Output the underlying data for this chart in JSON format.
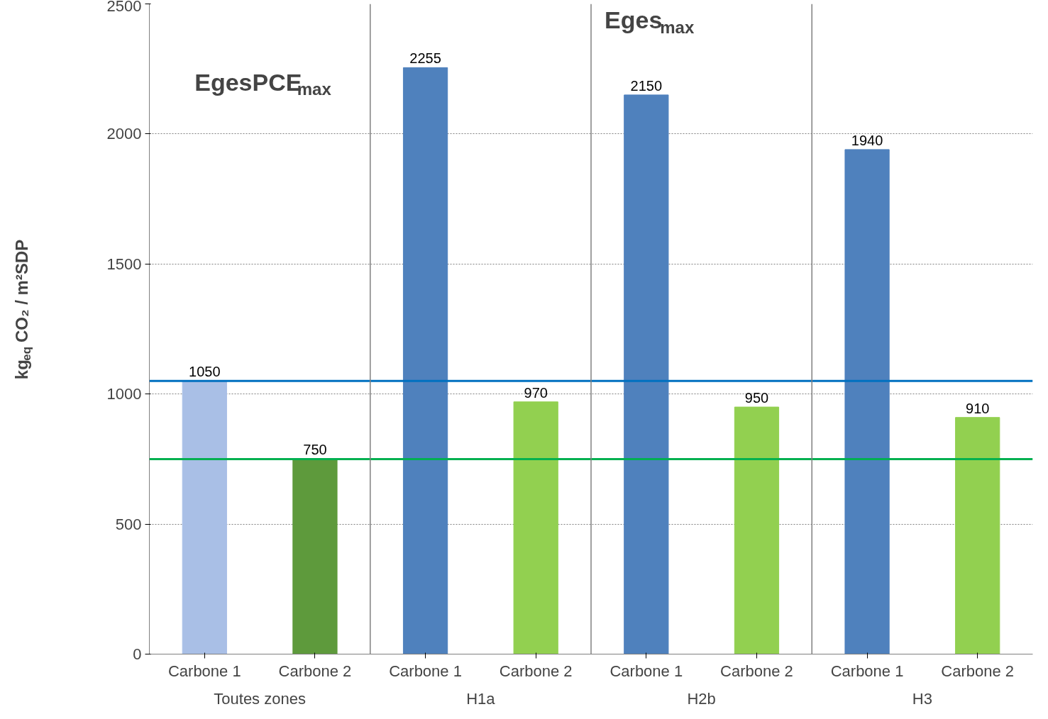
{
  "chart_data": {
    "type": "bar",
    "categories": [
      "Carbone 1",
      "Carbone 2",
      "Carbone 1",
      "Carbone 2",
      "Carbone 1",
      "Carbone 2",
      "Carbone 1",
      "Carbone 2"
    ],
    "values": [
      1050,
      750,
      2255,
      970,
      2150,
      950,
      1940,
      910
    ],
    "colors": [
      "#a9bfe6",
      "#5e9a3c",
      "#4f81bd",
      "#92d050",
      "#4f81bd",
      "#92d050",
      "#4f81bd",
      "#92d050"
    ],
    "ylabel": "kg$_{eq}$ CO₂ / m²SDP",
    "annotations": [
      "EgesPCE$_{max}$",
      "Eges$_{max}$",
      "Toutes zones",
      "H1a",
      "H2b",
      "H3"
    ],
    "ref_lines": [
      {
        "axis": "y",
        "value": 1050,
        "color": "#0070c0"
      },
      {
        "axis": "y",
        "value": 750,
        "color": "#00b050"
      }
    ],
    "ylim": [
      0,
      2500
    ],
    "yticks": [
      0,
      500,
      1000,
      1500,
      2000,
      2500
    ],
    "grid": "y",
    "data_labels": true
  }
}
